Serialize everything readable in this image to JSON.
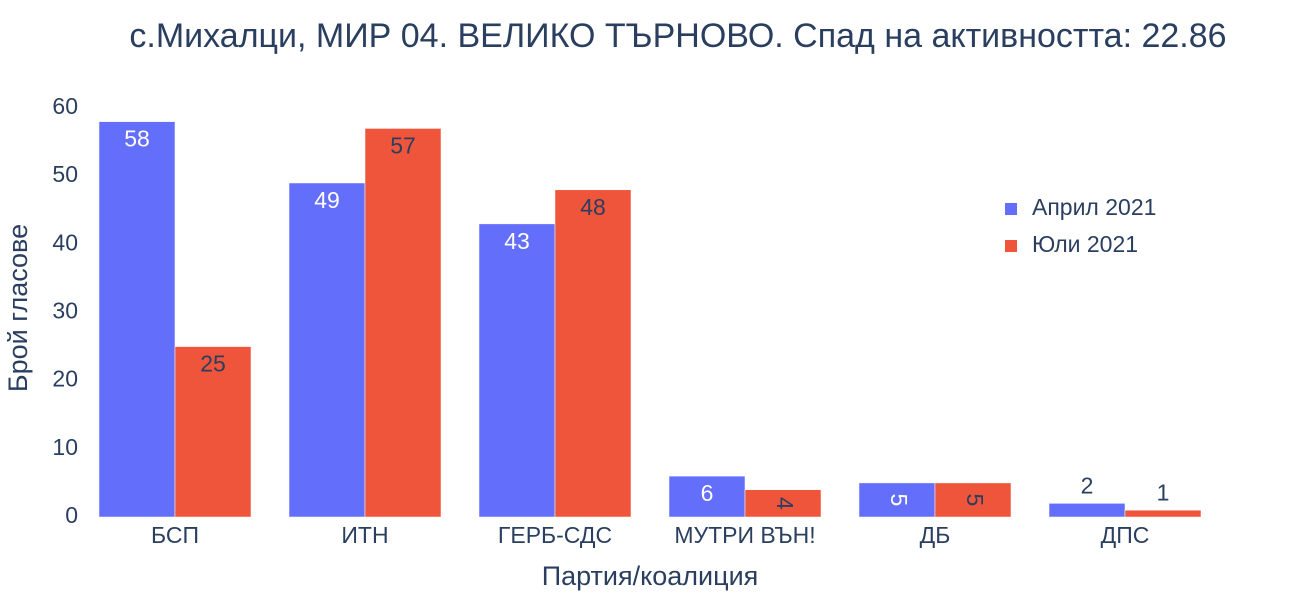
{
  "chart_data": {
    "type": "bar",
    "title": "с.Михалци, МИР 04. ВЕЛИКО ТЪРНОВО. Спад на активността: 22.86",
    "x_label": "Партия/коалиция",
    "y_label": "Брой гласове",
    "categories": [
      "БСП",
      "ИТН",
      "ГЕРБ-СДС",
      "МУТРИ ВЪН!",
      "ДБ",
      "ДПС"
    ],
    "series": [
      {
        "name": "Април 2021",
        "color": "#636efa",
        "label_color": "#ffffff",
        "values": [
          58,
          49,
          43,
          6,
          5,
          2
        ]
      },
      {
        "name": "Юли 2021",
        "color": "#ef553b",
        "label_color": "#2a3f5f",
        "values": [
          25,
          57,
          48,
          4,
          5,
          1
        ]
      }
    ],
    "ylim": [
      0,
      60
    ],
    "yticks": [
      0,
      10,
      20,
      30,
      40,
      50,
      60
    ],
    "grid": false,
    "legend": "upper right"
  }
}
